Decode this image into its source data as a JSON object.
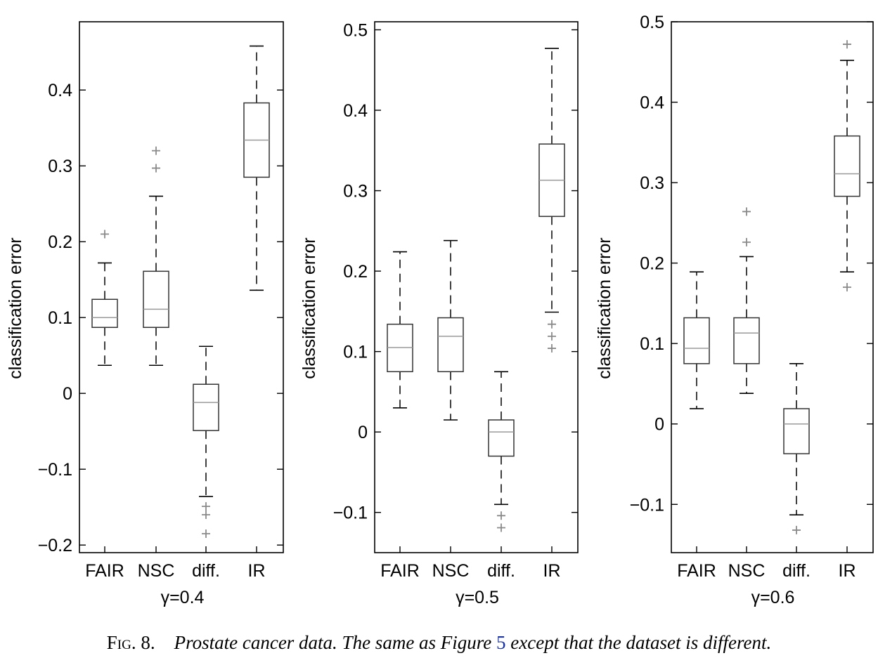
{
  "caption": {
    "label": "Fig. 8.",
    "text_before_ref": "Prostate cancer data. The same as Figure ",
    "ref": "5",
    "text_after_ref": " except that the dataset is different."
  },
  "chart_data": [
    {
      "type": "box",
      "xlabel": "γ=0.4",
      "ylabel": "classification error",
      "ylim": [
        -0.21,
        0.49
      ],
      "yticks": [
        -0.2,
        -0.1,
        0,
        0.1,
        0.2,
        0.3,
        0.4
      ],
      "ytick_labels": [
        "−0.2",
        "−0.1",
        "0",
        "0.1",
        "0.2",
        "0.3",
        "0.4"
      ],
      "categories": [
        "FAIR",
        "NSC",
        "diff.",
        "IR"
      ],
      "boxes": [
        {
          "whisker_low": 0.037,
          "q1": 0.087,
          "median": 0.1,
          "q3": 0.124,
          "whisker_high": 0.172,
          "outliers": [
            0.21
          ]
        },
        {
          "whisker_low": 0.037,
          "q1": 0.087,
          "median": 0.111,
          "q3": 0.161,
          "whisker_high": 0.26,
          "outliers": [
            0.297,
            0.32
          ]
        },
        {
          "whisker_low": -0.136,
          "q1": -0.049,
          "median": -0.012,
          "q3": 0.012,
          "whisker_high": 0.062,
          "outliers": [
            -0.149,
            -0.16,
            -0.185
          ]
        },
        {
          "whisker_low": 0.136,
          "q1": 0.285,
          "median": 0.334,
          "q3": 0.383,
          "whisker_high": 0.458,
          "outliers": []
        }
      ]
    },
    {
      "type": "box",
      "xlabel": "γ=0.5",
      "ylabel": "classification error",
      "ylim": [
        -0.15,
        0.51
      ],
      "yticks": [
        -0.1,
        0,
        0.1,
        0.2,
        0.3,
        0.4,
        0.5
      ],
      "ytick_labels": [
        "−0.1",
        "0",
        "0.1",
        "0.2",
        "0.3",
        "0.4",
        "0.5"
      ],
      "categories": [
        "FAIR",
        "NSC",
        "diff.",
        "IR"
      ],
      "boxes": [
        {
          "whisker_low": 0.03,
          "q1": 0.075,
          "median": 0.105,
          "q3": 0.134,
          "whisker_high": 0.224,
          "outliers": []
        },
        {
          "whisker_low": 0.015,
          "q1": 0.075,
          "median": 0.119,
          "q3": 0.142,
          "whisker_high": 0.238,
          "outliers": []
        },
        {
          "whisker_low": -0.09,
          "q1": -0.03,
          "median": 0.0,
          "q3": 0.015,
          "whisker_high": 0.075,
          "outliers": [
            -0.104,
            -0.119
          ]
        },
        {
          "whisker_low": 0.149,
          "q1": 0.268,
          "median": 0.313,
          "q3": 0.358,
          "whisker_high": 0.477,
          "outliers": [
            0.134,
            0.119,
            0.104
          ]
        }
      ]
    },
    {
      "type": "box",
      "xlabel": "γ=0.6",
      "ylabel": "classification error",
      "ylim": [
        -0.16,
        0.5
      ],
      "yticks": [
        -0.1,
        0,
        0.1,
        0.2,
        0.3,
        0.4,
        0.5
      ],
      "ytick_labels": [
        "−0.1",
        "0",
        "0.1",
        "0.2",
        "0.3",
        "0.4",
        "0.5"
      ],
      "categories": [
        "FAIR",
        "NSC",
        "diff.",
        "IR"
      ],
      "boxes": [
        {
          "whisker_low": 0.019,
          "q1": 0.075,
          "median": 0.094,
          "q3": 0.132,
          "whisker_high": 0.189,
          "outliers": []
        },
        {
          "whisker_low": 0.038,
          "q1": 0.075,
          "median": 0.113,
          "q3": 0.132,
          "whisker_high": 0.208,
          "outliers": [
            0.226,
            0.264
          ]
        },
        {
          "whisker_low": -0.113,
          "q1": -0.037,
          "median": 0.0,
          "q3": 0.019,
          "whisker_high": 0.075,
          "outliers": [
            -0.132
          ]
        },
        {
          "whisker_low": 0.189,
          "q1": 0.283,
          "median": 0.311,
          "q3": 0.358,
          "whisker_high": 0.452,
          "outliers": [
            0.17,
            0.472
          ]
        }
      ]
    }
  ]
}
